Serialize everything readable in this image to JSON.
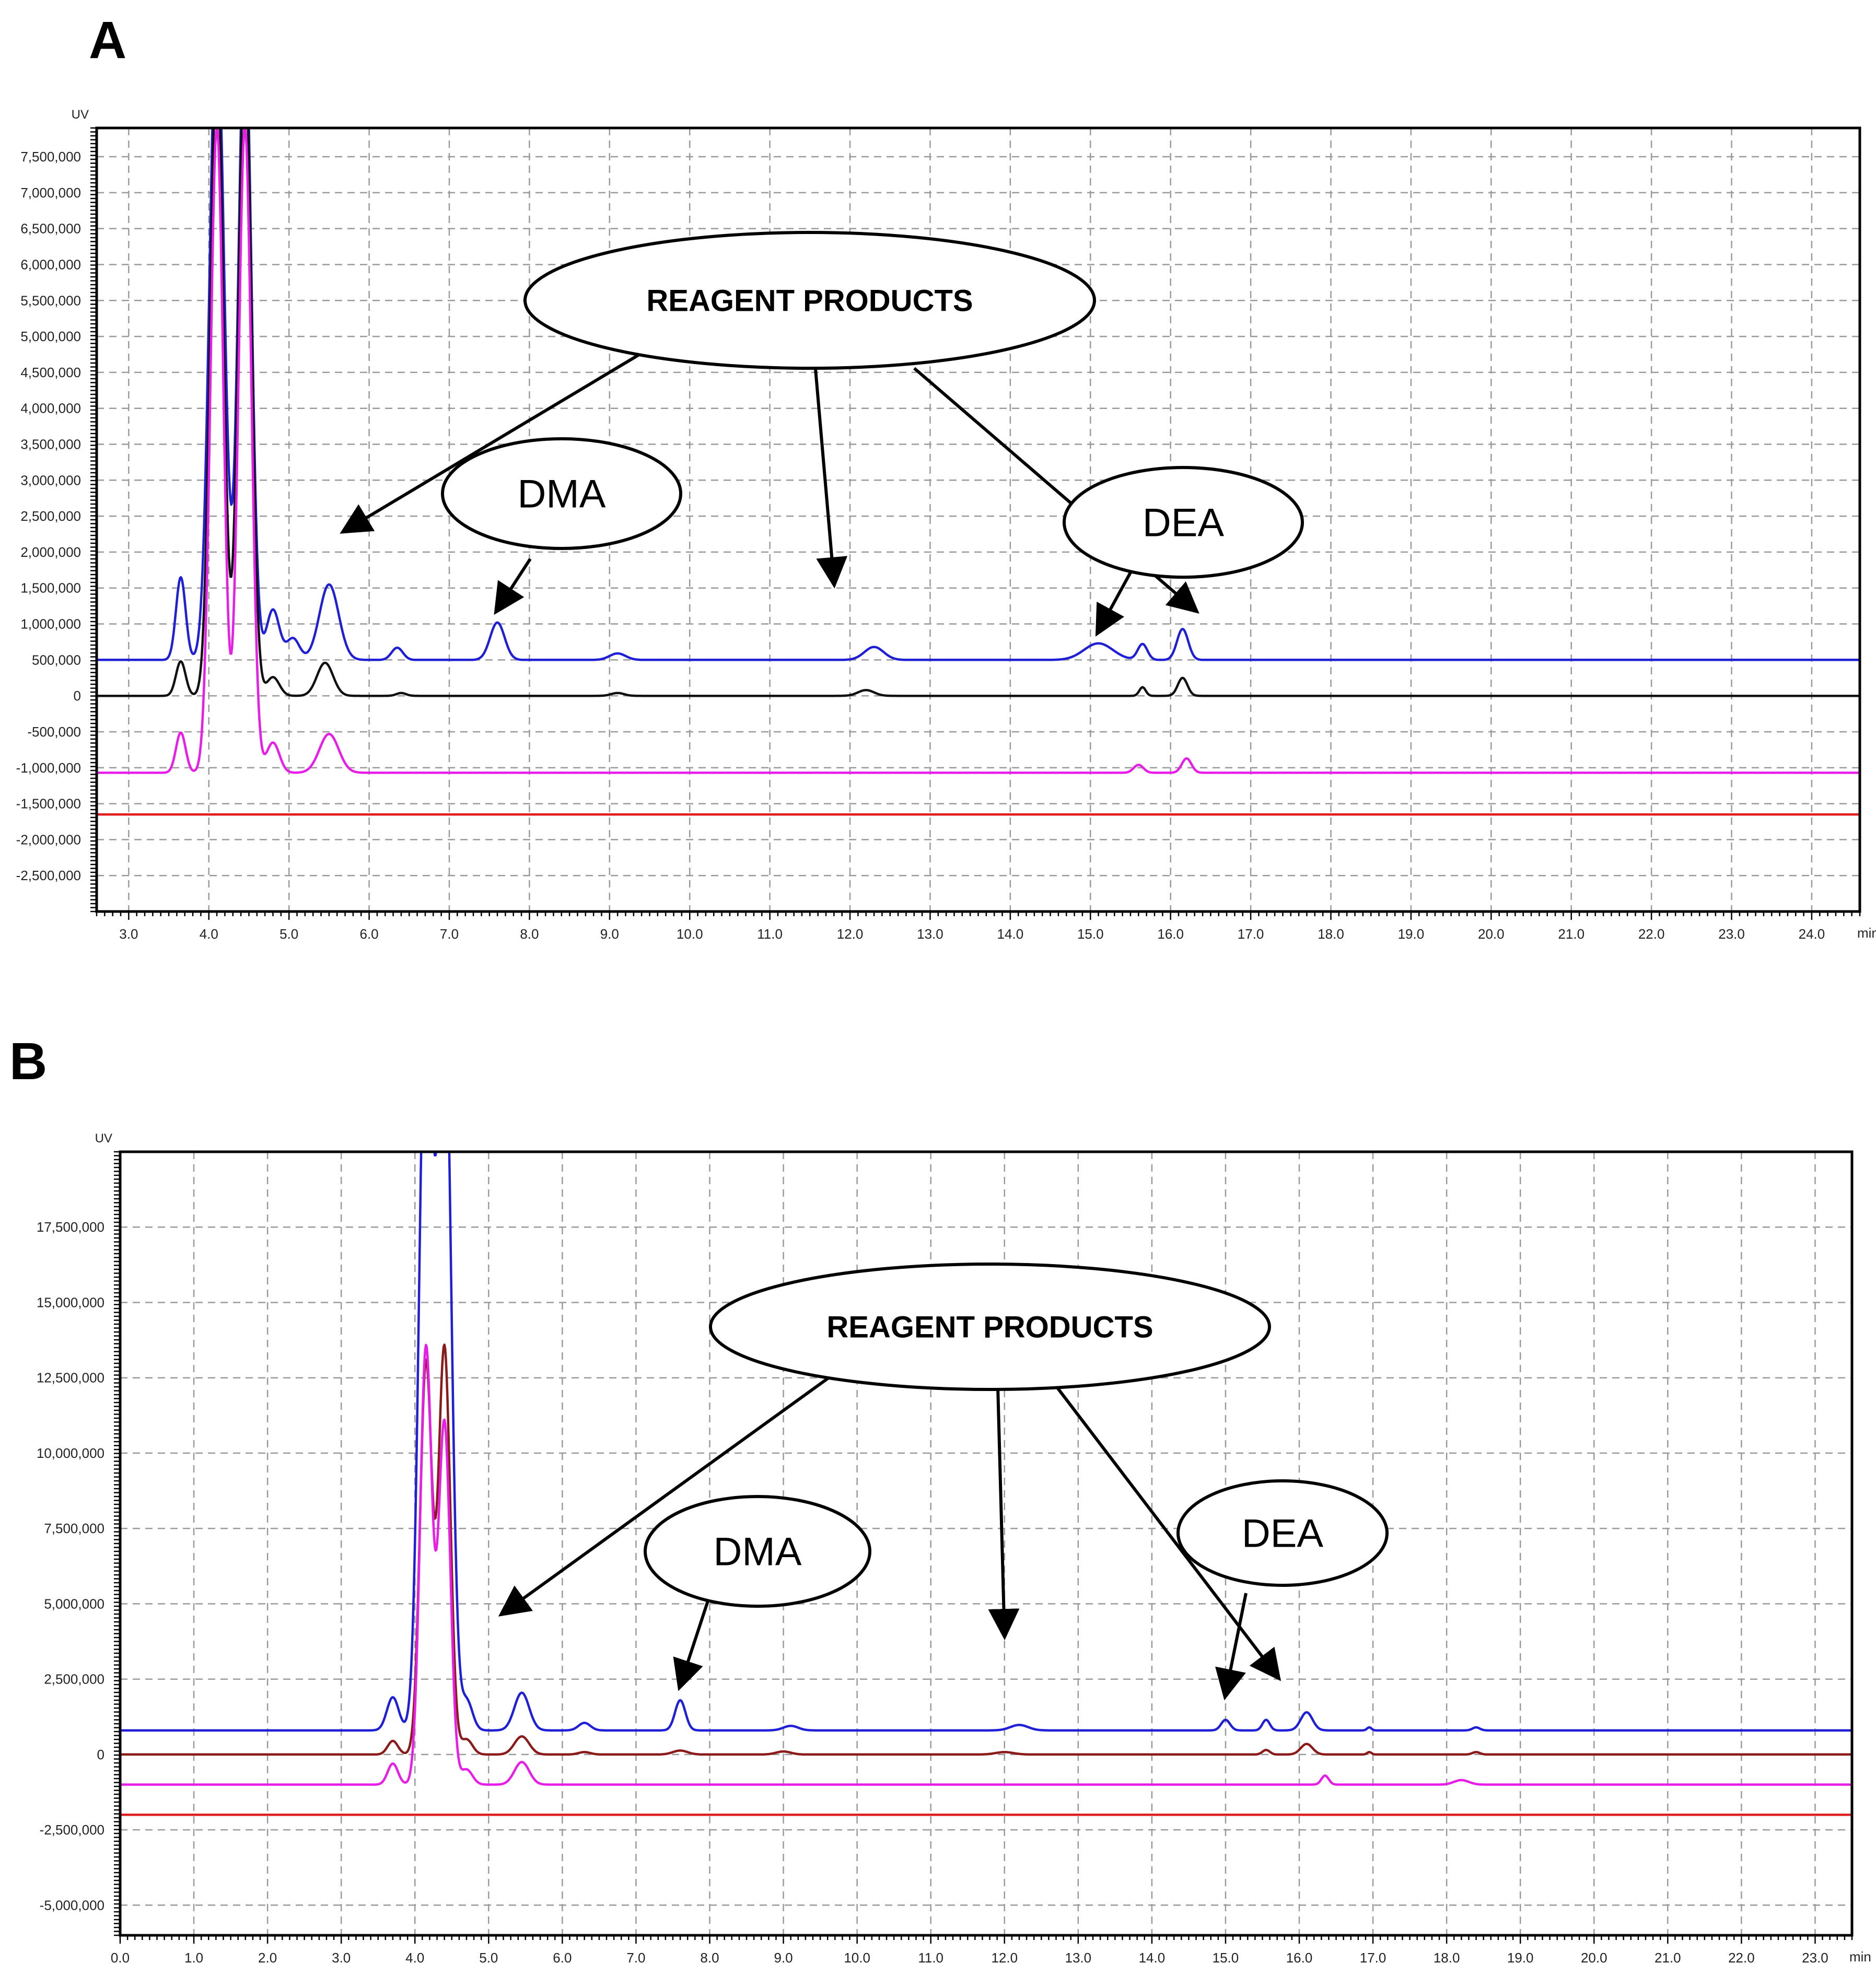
{
  "chart_data": [
    {
      "type": "line",
      "panel": "A",
      "ylabel": "UV",
      "xlabel": "min",
      "xlim": [
        2.6,
        24.6
      ],
      "ylim": [
        -3000000,
        7900000
      ],
      "x_ticks": [
        3.0,
        4.0,
        5.0,
        6.0,
        7.0,
        8.0,
        9.0,
        10.0,
        11.0,
        12.0,
        13.0,
        14.0,
        15.0,
        16.0,
        17.0,
        18.0,
        19.0,
        20.0,
        21.0,
        22.0,
        23.0,
        24.0
      ],
      "x_tick_labels": [
        "3.0",
        "4.0",
        "5.0",
        "6.0",
        "7.0",
        "8.0",
        "9.0",
        "10.0",
        "11.0",
        "12.0",
        "13.0",
        "14.0",
        "15.0",
        "16.0",
        "17.0",
        "18.0",
        "19.0",
        "20.0",
        "21.0",
        "22.0",
        "23.0",
        "24.0"
      ],
      "y_ticks": [
        7500000,
        7000000,
        6500000,
        6000000,
        5500000,
        5000000,
        4500000,
        4000000,
        3500000,
        3000000,
        2500000,
        2000000,
        1500000,
        1000000,
        500000,
        0,
        -500000,
        -1000000,
        -1500000,
        -2000000,
        -2500000
      ],
      "y_tick_labels": [
        "7,500,000",
        "7,000,000",
        "6,500,000",
        "6,000,000",
        "5,500,000",
        "5,000,000",
        "4,500,000",
        "4,000,000",
        "3,500,000",
        "3,000,000",
        "2,500,000",
        "2,000,000",
        "1,500,000",
        "1,000,000",
        "500,000",
        "0",
        "-500,000",
        "-1,000,000",
        "-1,500,000",
        "-2,000,000",
        "-2,500,000"
      ],
      "grid": true,
      "series": [
        {
          "name": "blue trace",
          "color": "#1f1fd8",
          "baseline": 500000,
          "peaks": [
            [
              3.65,
              1150000,
              0.06
            ],
            [
              4.1,
              9000000,
              0.09
            ],
            [
              4.45,
              9000000,
              0.08
            ],
            [
              4.8,
              700000,
              0.08
            ],
            [
              5.05,
              300000,
              0.08
            ],
            [
              5.5,
              1050000,
              0.12
            ],
            [
              6.35,
              170000,
              0.07
            ],
            [
              7.6,
              520000,
              0.09
            ],
            [
              9.1,
              90000,
              0.1
            ],
            [
              12.3,
              180000,
              0.12
            ],
            [
              15.1,
              230000,
              0.18
            ],
            [
              15.65,
              220000,
              0.06
            ],
            [
              16.15,
              430000,
              0.07
            ]
          ]
        },
        {
          "name": "black trace",
          "color": "#111111",
          "baseline": 0,
          "peaks": [
            [
              3.65,
              480000,
              0.06
            ],
            [
              4.1,
              9000000,
              0.08
            ],
            [
              4.45,
              9000000,
              0.08
            ],
            [
              4.8,
              260000,
              0.08
            ],
            [
              5.45,
              460000,
              0.1
            ],
            [
              6.4,
              40000,
              0.06
            ],
            [
              9.1,
              40000,
              0.08
            ],
            [
              12.2,
              80000,
              0.1
            ],
            [
              15.65,
              120000,
              0.04
            ],
            [
              16.15,
              250000,
              0.06
            ]
          ]
        },
        {
          "name": "magenta trace",
          "color": "#e81de8",
          "baseline": -1070000,
          "peaks": [
            [
              3.65,
              560000,
              0.06
            ],
            [
              4.1,
              9000000,
              0.08
            ],
            [
              4.45,
              9000000,
              0.08
            ],
            [
              4.8,
              420000,
              0.08
            ],
            [
              5.5,
              540000,
              0.12
            ],
            [
              15.6,
              110000,
              0.06
            ],
            [
              16.2,
              200000,
              0.06
            ]
          ]
        },
        {
          "name": "red baseline",
          "color": "#e02020",
          "baseline": -1650000,
          "peaks": []
        }
      ],
      "annotations": [
        {
          "label": "REAGENT PRODUCTS",
          "x": 11.6,
          "y": 5200000,
          "targets": [
            [
              5.7,
              2300000
            ],
            [
              11.8,
              1580000
            ],
            [
              16.3,
              1200000
            ]
          ]
        },
        {
          "label": "DMA",
          "x": 7.9,
          "y": 2750000,
          "targets": [
            [
              7.6,
              1200000
            ]
          ]
        },
        {
          "label": "DEA",
          "x": 15.6,
          "y": 2300000,
          "targets": [
            [
              15.1,
              900000
            ]
          ]
        }
      ]
    },
    {
      "type": "line",
      "panel": "B",
      "ylabel": "UV",
      "xlabel": "min",
      "xlim": [
        0.0,
        23.5
      ],
      "ylim": [
        -6000000,
        20000000
      ],
      "x_ticks": [
        0.0,
        1.0,
        2.0,
        3.0,
        4.0,
        5.0,
        6.0,
        7.0,
        8.0,
        9.0,
        10.0,
        11.0,
        12.0,
        13.0,
        14.0,
        15.0,
        16.0,
        17.0,
        18.0,
        19.0,
        20.0,
        21.0,
        22.0,
        23.0
      ],
      "x_tick_labels": [
        "0.0",
        "1.0",
        "2.0",
        "3.0",
        "4.0",
        "5.0",
        "6.0",
        "7.0",
        "8.0",
        "9.0",
        "10.0",
        "11.0",
        "12.0",
        "13.0",
        "14.0",
        "15.0",
        "16.0",
        "17.0",
        "18.0",
        "19.0",
        "20.0",
        "21.0",
        "22.0",
        "23.0"
      ],
      "y_ticks": [
        17500000,
        15000000,
        12500000,
        10000000,
        7500000,
        5000000,
        2500000,
        0,
        -2500000,
        -5000000
      ],
      "y_tick_labels": [
        "17,500,000",
        "15,000,000",
        "12,500,000",
        "10,000,000",
        "7,500,000",
        "5,000,000",
        "2,500,000",
        "0",
        "-2,500,000",
        "-5,000,000"
      ],
      "grid": true,
      "series": [
        {
          "name": "blue trace",
          "color": "#1f1fd8",
          "baseline": 800000,
          "peaks": [
            [
              3.7,
              1100000,
              0.08
            ],
            [
              4.15,
              25000000,
              0.09
            ],
            [
              4.4,
              25000000,
              0.09
            ],
            [
              4.7,
              1000000,
              0.08
            ],
            [
              5.45,
              1250000,
              0.1
            ],
            [
              6.3,
              250000,
              0.08
            ],
            [
              7.6,
              1000000,
              0.07
            ],
            [
              9.1,
              150000,
              0.1
            ],
            [
              12.2,
              180000,
              0.12
            ],
            [
              15.0,
              350000,
              0.06
            ],
            [
              15.55,
              350000,
              0.05
            ],
            [
              16.1,
              600000,
              0.08
            ],
            [
              16.95,
              100000,
              0.03
            ],
            [
              18.4,
              100000,
              0.05
            ]
          ]
        },
        {
          "name": "dark red trace",
          "color": "#8b1a1a",
          "baseline": 0,
          "peaks": [
            [
              3.7,
              450000,
              0.07
            ],
            [
              4.15,
              13000000,
              0.08
            ],
            [
              4.4,
              13500000,
              0.08
            ],
            [
              4.7,
              500000,
              0.08
            ],
            [
              5.45,
              600000,
              0.1
            ],
            [
              6.3,
              80000,
              0.08
            ],
            [
              7.6,
              130000,
              0.1
            ],
            [
              9.0,
              100000,
              0.1
            ],
            [
              12.0,
              80000,
              0.12
            ],
            [
              15.55,
              150000,
              0.05
            ],
            [
              16.1,
              350000,
              0.08
            ],
            [
              16.95,
              80000,
              0.03
            ],
            [
              18.4,
              80000,
              0.05
            ]
          ]
        },
        {
          "name": "magenta trace",
          "color": "#e81de8",
          "baseline": -1000000,
          "peaks": [
            [
              3.7,
              700000,
              0.07
            ],
            [
              4.15,
              14500000,
              0.08
            ],
            [
              4.4,
              12000000,
              0.08
            ],
            [
              4.7,
              500000,
              0.08
            ],
            [
              5.45,
              750000,
              0.1
            ],
            [
              16.35,
              300000,
              0.05
            ],
            [
              18.2,
              150000,
              0.1
            ]
          ]
        },
        {
          "name": "red baseline",
          "color": "#e02020",
          "baseline": -2000000,
          "peaks": []
        }
      ],
      "annotations": [
        {
          "label": "REAGENT PRODUCTS",
          "x": 11.8,
          "y": 14000000,
          "targets": [
            [
              5.2,
              4700000
            ],
            [
              12.0,
              4000000
            ],
            [
              15.7,
              2600000
            ]
          ]
        },
        {
          "label": "DMA",
          "x": 8.7,
          "y": 6600000,
          "targets": [
            [
              7.6,
              2300000
            ]
          ]
        },
        {
          "label": "DEA",
          "x": 15.7,
          "y": 7100000,
          "targets": [
            [
              15.0,
              2000000
            ]
          ]
        }
      ]
    }
  ],
  "labels": {
    "panel_a": "A",
    "panel_b": "B"
  }
}
